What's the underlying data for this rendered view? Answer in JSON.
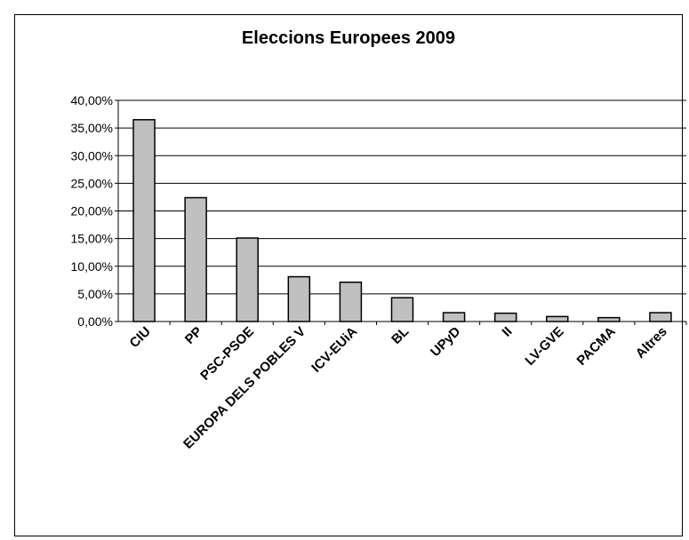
{
  "chart_data": {
    "type": "bar",
    "title": "Eleccions Europees 2009",
    "xlabel": "",
    "ylabel": "",
    "categories": [
      "CIU",
      "PP",
      "PSC-PSOE",
      "EUROPA DELS POBLES V",
      "ICV-EUiA",
      "BL",
      "UPyD",
      "II",
      "LV-GVE",
      "PACMA",
      "Altres"
    ],
    "values": [
      36.5,
      22.4,
      15.1,
      8.1,
      7.1,
      4.3,
      1.6,
      1.5,
      0.9,
      0.7,
      1.6
    ],
    "ylim": [
      0,
      40
    ],
    "ytick_labels": [
      "0,00%",
      "5,00%",
      "10,00%",
      "15,00%",
      "20,00%",
      "25,00%",
      "30,00%",
      "35,00%",
      "40,00%"
    ],
    "grid": true,
    "colors": {
      "bar_fill": "#c0c0c0",
      "bar_stroke": "#000000",
      "grid": "#000000"
    }
  }
}
